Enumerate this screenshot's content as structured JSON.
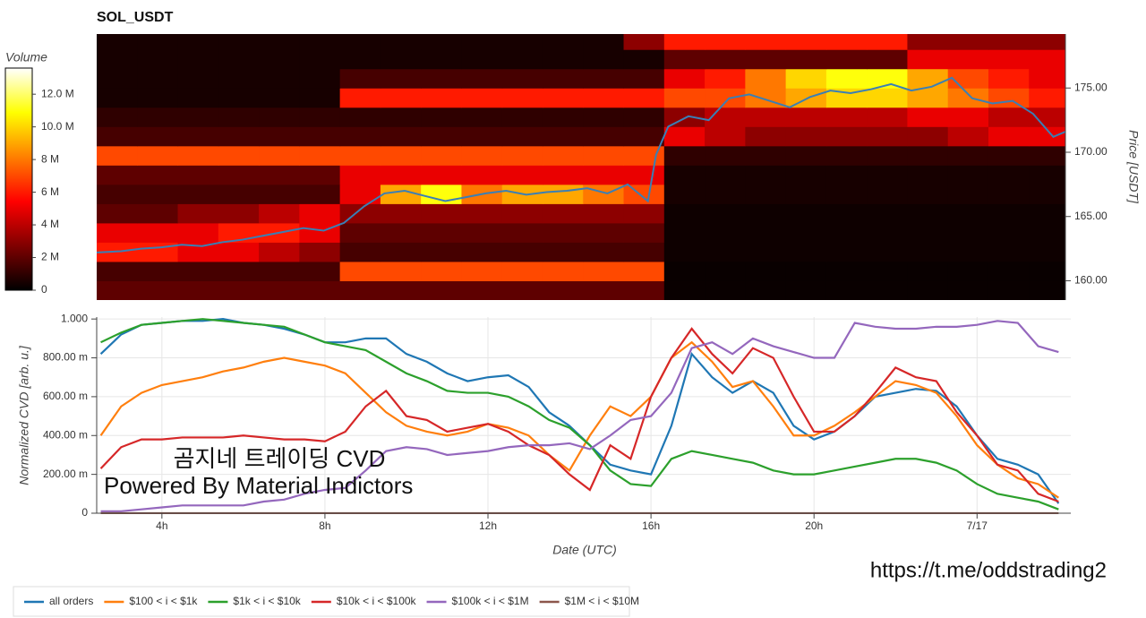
{
  "chart_data": [
    {
      "type": "heatmap",
      "title": "SOL_USDT",
      "y_label": "Price [USDT]",
      "colorbar_title": "Volume",
      "colormap": "hot",
      "xlim": [
        2.4,
        26.3
      ],
      "ylim": [
        158.5,
        179.2
      ],
      "yticks": [
        {
          "value": 160,
          "label": "160.00"
        },
        {
          "value": 165,
          "label": "165.00"
        },
        {
          "value": 170,
          "label": "170.00"
        },
        {
          "value": 175,
          "label": "175.00"
        }
      ],
      "clim": [
        0,
        13.6
      ],
      "colorbar_ticks": [
        0,
        {
          "value": 2,
          "label": "2 M"
        },
        {
          "value": 4,
          "label": "4 M"
        },
        {
          "value": 6,
          "label": "6 M"
        },
        {
          "value": 8,
          "label": "8 M"
        },
        {
          "value": 10,
          "label": "10.0 M"
        },
        {
          "value": 12,
          "label": "12.0 M"
        }
      ],
      "x": [
        2.9,
        3.9,
        4.9,
        5.9,
        6.9,
        7.9,
        8.9,
        9.9,
        10.9,
        11.9,
        12.9,
        13.9,
        14.9,
        15.9,
        16.9,
        17.9,
        18.9,
        19.9,
        20.9,
        21.9,
        22.9,
        23.9,
        24.9,
        25.9
      ],
      "y": [
        159.25,
        160.75,
        162.25,
        163.75,
        165.25,
        166.75,
        168.25,
        169.75,
        171.25,
        172.75,
        174.25,
        175.75,
        177.25,
        178.75
      ],
      "z": [
        [
          2,
          2,
          2,
          2,
          2,
          2,
          2,
          2,
          2,
          2,
          2,
          2,
          2,
          2,
          0.2,
          0.2,
          0.2,
          0.2,
          0.2,
          0.2,
          0.2,
          0.2,
          0.2,
          0.2
        ],
        [
          1.5,
          1.5,
          1.5,
          1.5,
          1.5,
          1.5,
          7,
          7,
          7,
          7,
          7,
          7,
          7,
          7,
          0.2,
          0.2,
          0.2,
          0.2,
          0.2,
          0.2,
          0.2,
          0.2,
          0.2,
          0.2
        ],
        [
          6,
          6,
          5,
          5,
          4,
          3,
          1.5,
          1.5,
          1.5,
          1.5,
          1.5,
          1.5,
          1.5,
          1.5,
          0.3,
          0.3,
          0.3,
          0.3,
          0.3,
          0.3,
          0.3,
          0.3,
          0.3,
          0.3
        ],
        [
          5,
          5,
          5,
          6,
          6,
          5,
          2,
          2,
          2,
          2,
          2,
          2,
          2,
          2,
          0.3,
          0.3,
          0.3,
          0.3,
          0.3,
          0.3,
          0.3,
          0.3,
          0.3,
          0.3
        ],
        [
          2,
          2,
          3,
          3,
          4,
          5,
          3,
          3,
          3,
          3,
          3,
          3,
          3,
          3,
          0.3,
          0.3,
          0.3,
          0.3,
          0.3,
          0.3,
          0.3,
          0.3,
          0.3,
          0.3
        ],
        [
          1.5,
          1.5,
          1.5,
          1.5,
          1.5,
          1.5,
          5,
          9,
          11,
          8,
          9,
          9,
          8,
          7,
          0.5,
          0.5,
          0.5,
          0.5,
          0.5,
          0.5,
          0.5,
          0.5,
          0.5,
          0.5
        ],
        [
          2,
          2,
          2,
          2,
          2,
          2,
          5,
          5,
          5,
          5,
          5,
          5,
          5,
          5,
          0.5,
          0.5,
          0.5,
          0.5,
          0.5,
          0.5,
          0.5,
          0.5,
          0.5,
          0.5
        ],
        [
          7,
          7,
          7,
          7,
          7,
          7,
          7,
          7,
          7,
          7,
          7,
          7,
          7,
          7,
          1,
          1,
          1,
          1,
          1,
          1,
          1,
          1,
          1,
          1
        ],
        [
          1.5,
          1.5,
          1.5,
          1.5,
          1.5,
          1.5,
          1.5,
          1.5,
          1.5,
          1.5,
          1.5,
          1.5,
          1.5,
          1.5,
          5,
          4,
          3,
          3,
          3,
          3,
          3,
          4,
          5,
          5
        ],
        [
          1,
          1,
          1,
          1,
          1,
          1,
          1,
          1,
          1,
          1,
          1,
          1,
          1,
          1,
          3,
          4,
          4,
          4,
          4,
          4,
          5,
          5,
          4,
          4
        ],
        [
          0.5,
          0.5,
          0.5,
          0.5,
          0.5,
          0.5,
          6,
          6,
          6,
          6,
          6,
          6,
          6,
          6,
          7,
          7,
          8,
          9,
          10,
          10,
          9,
          8,
          7,
          6
        ],
        [
          0.5,
          0.5,
          0.5,
          0.5,
          0.5,
          0.5,
          1.5,
          1.5,
          1.5,
          1.5,
          1.5,
          1.5,
          1.5,
          1.5,
          5,
          6,
          8,
          10,
          11,
          11,
          9,
          7,
          6,
          5
        ],
        [
          0.5,
          0.5,
          0.5,
          0.5,
          0.5,
          0.5,
          0.5,
          0.5,
          0.5,
          0.5,
          0.5,
          0.5,
          0.5,
          0.5,
          2,
          2,
          2,
          2,
          2,
          2,
          5,
          5,
          5,
          5
        ],
        [
          0.5,
          0.5,
          0.5,
          0.5,
          0.5,
          0.5,
          0.5,
          0.5,
          0.5,
          0.5,
          0.5,
          0.5,
          0.5,
          3,
          6,
          6,
          6,
          6,
          6,
          6,
          3,
          3,
          3,
          3
        ]
      ],
      "price": {
        "color": "#3a7fb5",
        "x": [
          2.4,
          3,
          3.5,
          4,
          4.5,
          5,
          5.5,
          6,
          6.5,
          7,
          7.5,
          8,
          8.5,
          9,
          9.5,
          10,
          10.5,
          11,
          11.5,
          12,
          12.5,
          13,
          13.5,
          14,
          14.5,
          15,
          15.5,
          16,
          16.2,
          16.5,
          17,
          17.5,
          18,
          18.5,
          19,
          19.5,
          20,
          20.5,
          21,
          21.5,
          22,
          22.5,
          23,
          23.5,
          24,
          24.5,
          25,
          25.5,
          26,
          26.3
        ],
        "values": [
          162.2,
          162.3,
          162.5,
          162.6,
          162.8,
          162.7,
          163.0,
          163.2,
          163.5,
          163.8,
          164.1,
          163.9,
          164.5,
          165.8,
          166.8,
          167.0,
          166.6,
          166.2,
          166.5,
          166.8,
          167.0,
          166.7,
          166.9,
          167.0,
          167.2,
          166.8,
          167.5,
          166.2,
          169.8,
          172.0,
          172.8,
          172.5,
          174.2,
          174.5,
          174.0,
          173.5,
          174.3,
          174.8,
          174.6,
          174.9,
          175.3,
          174.8,
          175.1,
          175.8,
          174.2,
          173.8,
          174.0,
          173.0,
          171.2,
          171.6
        ]
      }
    },
    {
      "type": "line",
      "y_label": "Normalized CVD [arb. u.]",
      "x_label": "Date (UTC)",
      "grid": true,
      "legend": "bottom-left",
      "annotations": [
        "곰지네 트레이딩 CVD",
        "Powered By Material Indictors",
        "https://t.me/oddstrading2"
      ],
      "xlim": [
        2.4,
        26.3
      ],
      "ylim": [
        0,
        1.01
      ],
      "xticks": [
        {
          "value": 4,
          "label": "4h"
        },
        {
          "value": 8,
          "label": "8h"
        },
        {
          "value": 12,
          "label": "12h"
        },
        {
          "value": 16,
          "label": "16h"
        },
        {
          "value": 20,
          "label": "20h"
        },
        {
          "value": 24,
          "label": "7/17"
        }
      ],
      "yticks": [
        0,
        {
          "value": 0.2,
          "label": "200.00 m"
        },
        {
          "value": 0.4,
          "label": "400.00 m"
        },
        {
          "value": 0.6,
          "label": "600.00 m"
        },
        {
          "value": 0.8,
          "label": "800.00 m"
        },
        {
          "value": 1,
          "label": "1.000"
        }
      ],
      "x": [
        2.5,
        3,
        3.5,
        4,
        4.5,
        5,
        5.5,
        6,
        6.5,
        7,
        7.5,
        8,
        8.5,
        9,
        9.5,
        10,
        10.5,
        11,
        11.5,
        12,
        12.5,
        13,
        13.5,
        14,
        14.5,
        15,
        15.5,
        16,
        16.5,
        17,
        17.5,
        18,
        18.5,
        19,
        19.5,
        20,
        20.5,
        21,
        21.5,
        22,
        22.5,
        23,
        23.5,
        24,
        24.5,
        25,
        25.5,
        26
      ],
      "series": [
        {
          "name": "all orders",
          "color": "#1f77b4",
          "values": [
            0.82,
            0.92,
            0.97,
            0.98,
            0.99,
            0.99,
            1.0,
            0.98,
            0.97,
            0.95,
            0.92,
            0.88,
            0.88,
            0.9,
            0.9,
            0.82,
            0.78,
            0.72,
            0.68,
            0.7,
            0.71,
            0.65,
            0.52,
            0.45,
            0.35,
            0.25,
            0.22,
            0.2,
            0.45,
            0.82,
            0.7,
            0.62,
            0.68,
            0.62,
            0.45,
            0.38,
            0.42,
            0.5,
            0.6,
            0.62,
            0.64,
            0.63,
            0.55,
            0.4,
            0.28,
            0.25,
            0.2,
            0.05
          ]
        },
        {
          "name": "$100 < i < $1k",
          "color": "#ff7f0e",
          "values": [
            0.4,
            0.55,
            0.62,
            0.66,
            0.68,
            0.7,
            0.73,
            0.75,
            0.78,
            0.8,
            0.78,
            0.76,
            0.72,
            0.62,
            0.52,
            0.45,
            0.42,
            0.4,
            0.42,
            0.46,
            0.44,
            0.4,
            0.3,
            0.22,
            0.4,
            0.55,
            0.5,
            0.6,
            0.8,
            0.88,
            0.78,
            0.65,
            0.68,
            0.55,
            0.4,
            0.4,
            0.45,
            0.52,
            0.6,
            0.68,
            0.66,
            0.62,
            0.5,
            0.35,
            0.25,
            0.18,
            0.15,
            0.08
          ]
        },
        {
          "name": "$1k < i < $10k",
          "color": "#2ca02c",
          "values": [
            0.88,
            0.93,
            0.97,
            0.98,
            0.99,
            1.0,
            0.99,
            0.98,
            0.97,
            0.96,
            0.92,
            0.88,
            0.86,
            0.84,
            0.78,
            0.72,
            0.68,
            0.63,
            0.62,
            0.62,
            0.6,
            0.55,
            0.48,
            0.44,
            0.35,
            0.22,
            0.15,
            0.14,
            0.28,
            0.32,
            0.3,
            0.28,
            0.26,
            0.22,
            0.2,
            0.2,
            0.22,
            0.24,
            0.26,
            0.28,
            0.28,
            0.26,
            0.22,
            0.15,
            0.1,
            0.08,
            0.06,
            0.02
          ]
        },
        {
          "name": "$10k < i < $100k",
          "color": "#d62728",
          "values": [
            0.23,
            0.34,
            0.38,
            0.38,
            0.39,
            0.39,
            0.39,
            0.4,
            0.39,
            0.38,
            0.38,
            0.37,
            0.42,
            0.55,
            0.63,
            0.5,
            0.48,
            0.42,
            0.44,
            0.46,
            0.42,
            0.35,
            0.3,
            0.2,
            0.12,
            0.35,
            0.28,
            0.6,
            0.8,
            0.95,
            0.82,
            0.72,
            0.85,
            0.8,
            0.6,
            0.42,
            0.42,
            0.5,
            0.62,
            0.75,
            0.7,
            0.68,
            0.52,
            0.4,
            0.25,
            0.22,
            0.1,
            0.06
          ]
        },
        {
          "name": "$100k < i < $1M",
          "color": "#9467bd",
          "values": [
            0.01,
            0.01,
            0.02,
            0.03,
            0.04,
            0.04,
            0.04,
            0.04,
            0.06,
            0.07,
            0.1,
            0.12,
            0.13,
            0.22,
            0.32,
            0.34,
            0.33,
            0.3,
            0.31,
            0.32,
            0.34,
            0.35,
            0.35,
            0.36,
            0.33,
            0.4,
            0.48,
            0.5,
            0.62,
            0.85,
            0.88,
            0.82,
            0.9,
            0.86,
            0.83,
            0.8,
            0.8,
            0.98,
            0.96,
            0.95,
            0.95,
            0.96,
            0.96,
            0.97,
            0.99,
            0.98,
            0.86,
            0.83
          ]
        },
        {
          "name": "$1M < i < $10M",
          "color": "#8c564b",
          "values": [
            0,
            0,
            0,
            0,
            0,
            0,
            0,
            0,
            0,
            0,
            0,
            0,
            0,
            0,
            0,
            0,
            0,
            0,
            0,
            0,
            0,
            0,
            0,
            0,
            0,
            0,
            0,
            0,
            0,
            0,
            0,
            0,
            0,
            0,
            0,
            0,
            0,
            0,
            0,
            0,
            0,
            0,
            0,
            0,
            0,
            0,
            0,
            0
          ]
        }
      ]
    }
  ]
}
